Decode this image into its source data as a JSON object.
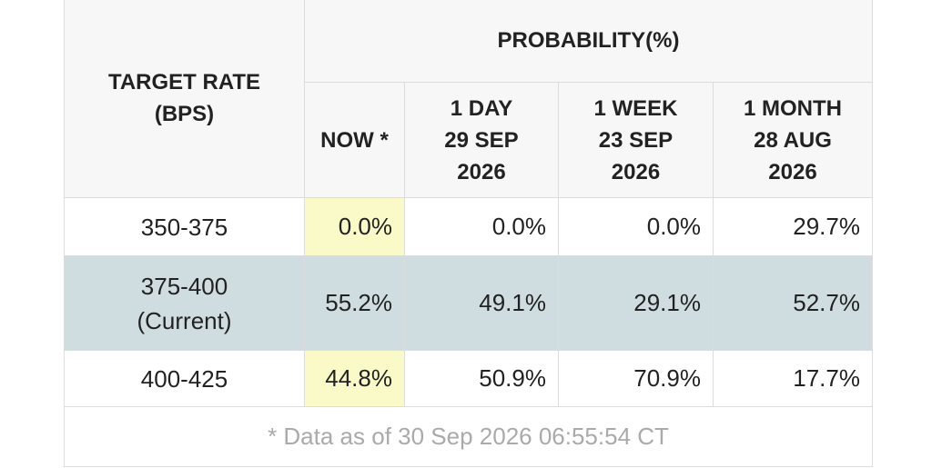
{
  "table": {
    "corner": [
      "TARGET RATE",
      "(BPS)"
    ],
    "group_header": "PROBABILITY(%)",
    "columns": [
      [
        "NOW *"
      ],
      [
        "1 DAY",
        "29 SEP",
        "2026"
      ],
      [
        "1 WEEK",
        "23 SEP",
        "2026"
      ],
      [
        "1 MONTH",
        "28 AUG",
        "2026"
      ]
    ],
    "rows": [
      {
        "label": [
          "350-375"
        ],
        "cells": [
          "0.0%",
          "0.0%",
          "0.0%",
          "29.7%"
        ]
      },
      {
        "label": [
          "375-400",
          "(Current)"
        ],
        "cells": [
          "55.2%",
          "49.1%",
          "29.1%",
          "52.7%"
        ]
      },
      {
        "label": [
          "400-425"
        ],
        "cells": [
          "44.8%",
          "50.9%",
          "70.9%",
          "17.7%"
        ]
      }
    ],
    "footnote": "* Data as of 30 Sep 2026 06:55:54 CT"
  }
}
